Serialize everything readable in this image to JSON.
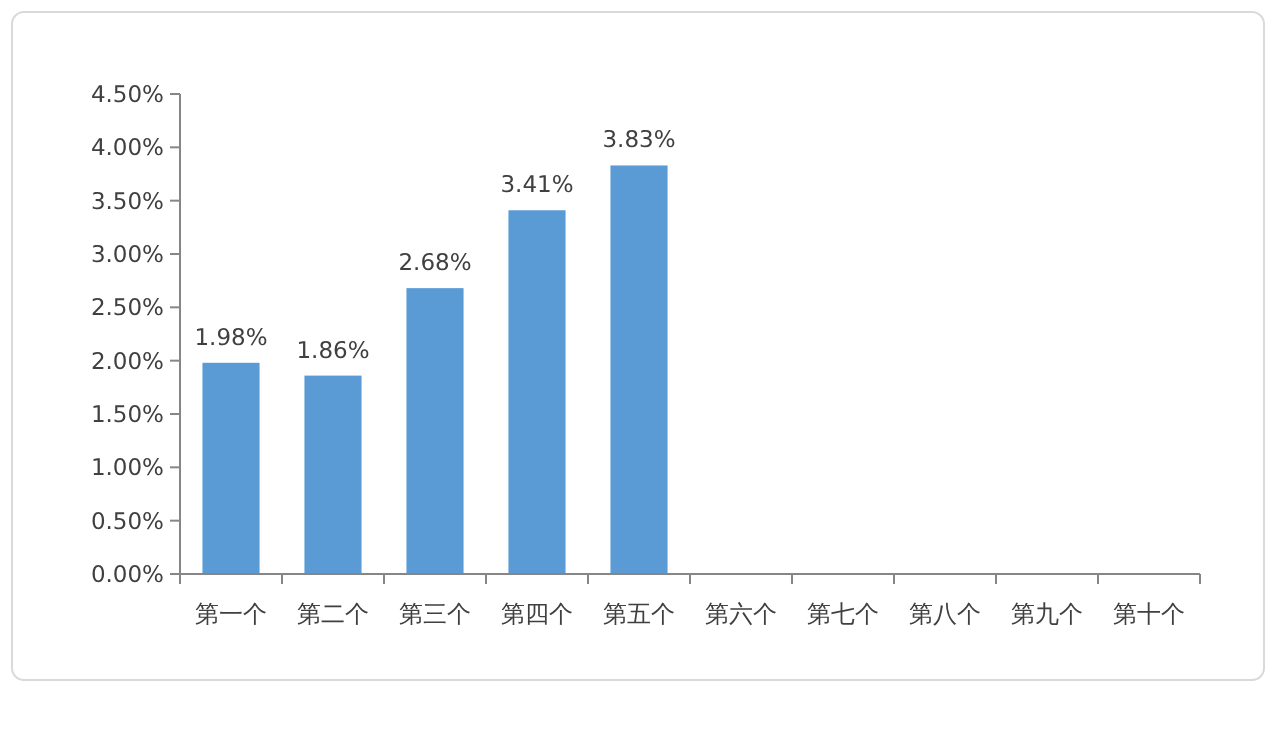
{
  "chart_data": {
    "type": "bar",
    "categories": [
      "第一个",
      "第二个",
      "第三个",
      "第四个",
      "第五个",
      "第六个",
      "第七个",
      "第八个",
      "第九个",
      "第十个"
    ],
    "values": [
      1.98,
      1.86,
      2.68,
      3.41,
      3.83,
      null,
      null,
      null,
      null,
      null
    ],
    "value_labels": [
      "1.98%",
      "1.86%",
      "2.68%",
      "3.41%",
      "3.83%",
      null,
      null,
      null,
      null,
      null
    ],
    "color": "#5b9bd5",
    "ylim": [
      0,
      4.5
    ],
    "yticks": [
      {
        "value": 0,
        "label": "0.00%"
      },
      {
        "value": 0.5,
        "label": "0.50%"
      },
      {
        "value": 1,
        "label": "1.00%"
      },
      {
        "value": 1.5,
        "label": "1.50%"
      },
      {
        "value": 2,
        "label": "2.00%"
      },
      {
        "value": 2.5,
        "label": "2.50%"
      },
      {
        "value": 3,
        "label": "3.00%"
      },
      {
        "value": 3.5,
        "label": "3.50%"
      },
      {
        "value": 4,
        "label": "4.00%"
      },
      {
        "value": 4.5,
        "label": "4.50%"
      }
    ],
    "grid": false
  }
}
